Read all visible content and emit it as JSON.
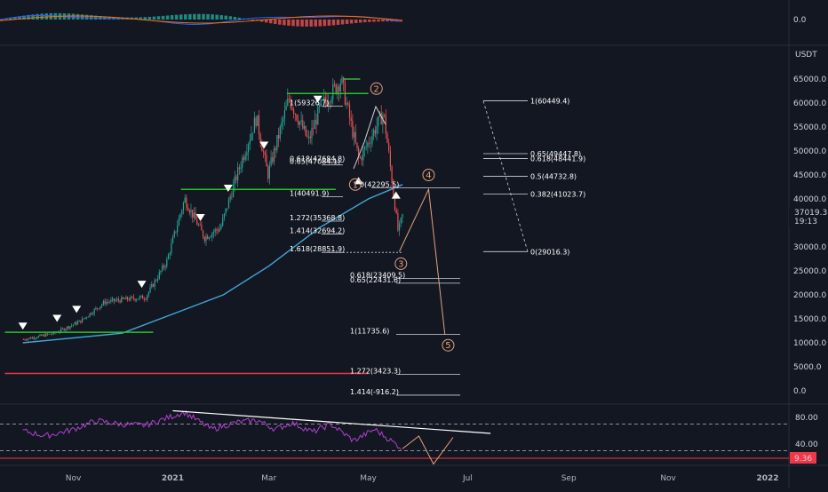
{
  "chart_data": [
    {
      "type": "line",
      "panel": "macd-histogram",
      "axis_ticks": [
        "0.0"
      ],
      "ylim": [
        -1,
        1
      ],
      "grid": false
    },
    {
      "type": "candlestick",
      "panel": "price",
      "quote_label": "USDT",
      "y_ticks": [
        65000,
        60000,
        55000,
        50000,
        45000,
        40000,
        35000,
        30000,
        25000,
        20000,
        15000,
        10000,
        5000,
        0
      ],
      "y_tick_labels": [
        "65000.0",
        "60000.0",
        "55000.0",
        "50000.0",
        "45000.0",
        "40000.0",
        "35000.0",
        "30000.0",
        "25000.0",
        "20000.0",
        "15000.0",
        "10000.0",
        "5000.0",
        "0.0"
      ],
      "ylim": [
        -3000,
        68000
      ],
      "x_labels": [
        "Nov",
        "2021",
        "Mar",
        "May",
        "Jul",
        "Sep",
        "Nov",
        "2022"
      ],
      "last_price": "37019.3",
      "countdown": "19:13",
      "price_path": [
        [
          "2020-10-01",
          10700
        ],
        [
          "2020-10-20",
          12000
        ],
        [
          "2020-11-05",
          14500
        ],
        [
          "2020-11-20",
          18500
        ],
        [
          "2020-12-01",
          19000
        ],
        [
          "2020-12-15",
          19500
        ],
        [
          "2020-12-28",
          27000
        ],
        [
          "2021-01-08",
          40000
        ],
        [
          "2021-01-20",
          32000
        ],
        [
          "2021-01-30",
          34000
        ],
        [
          "2021-02-10",
          46000
        ],
        [
          "2021-02-21",
          57000
        ],
        [
          "2021-02-28",
          45000
        ],
        [
          "2021-03-13",
          61000
        ],
        [
          "2021-03-25",
          52000
        ],
        [
          "2021-04-01",
          59000
        ],
        [
          "2021-04-14",
          64800
        ],
        [
          "2021-04-25",
          48000
        ],
        [
          "2021-05-10",
          58000
        ],
        [
          "2021-05-13",
          50000
        ],
        [
          "2021-05-19",
          33000
        ],
        [
          "2021-05-22",
          37000
        ]
      ],
      "ma_path": [
        [
          "2020-10-01",
          10000
        ],
        [
          "2020-12-01",
          12000
        ],
        [
          "2021-01-01",
          16000
        ],
        [
          "2021-02-01",
          20000
        ],
        [
          "2021-03-01",
          26000
        ],
        [
          "2021-04-01",
          34000
        ],
        [
          "2021-05-01",
          40000
        ],
        [
          "2021-05-22",
          43000
        ]
      ],
      "horizontal_levels": [
        {
          "price": 62000,
          "color": "#26c22b",
          "from": "2021-03-12",
          "to": "2021-05-01"
        },
        {
          "price": 65000,
          "color": "#26c22b",
          "from": "2021-04-16",
          "to": "2021-04-26"
        },
        {
          "price": 42000,
          "color": "#26c22b",
          "from": "2021-01-06",
          "to": "2021-04-11"
        },
        {
          "price": 12200,
          "color": "#26c22b",
          "from": "2020-09-20",
          "to": "2020-12-20"
        },
        {
          "price": 3600,
          "color": "#f23645",
          "from": "2020-09-20",
          "to": "2021-05-01"
        }
      ],
      "buy_markers": [
        "2020-10-01",
        "2020-10-22",
        "2020-11-03",
        "2020-12-13",
        "2021-01-18",
        "2021-02-04",
        "2021-02-26",
        "2021-03-31"
      ],
      "sell_markers": [
        [
          "2021-04-25",
          44000
        ],
        [
          "2021-05-18",
          41000
        ]
      ],
      "fib_left": [
        {
          "label": "1(59326.7)",
          "price": 59326.7
        },
        {
          "label": "0.618(47684.8)",
          "price": 47684.8
        },
        {
          "label": "0.65(47084.1)",
          "price": 47084.1
        },
        {
          "label": "1(40491.9)",
          "price": 40491.9
        },
        {
          "label": "1.272(35368.8)",
          "price": 35368.8
        },
        {
          "label": "1.414(32694.2)",
          "price": 32694.2
        },
        {
          "label": "1.618(28851.9)",
          "price": 28851.9
        }
      ],
      "fib_mid": [
        {
          "label": "0(42295.5)",
          "price": 42295.5
        },
        {
          "label": "0.618(23409.5)",
          "price": 23409.5
        },
        {
          "label": "0.65(22431.6)",
          "price": 22431.6
        },
        {
          "label": "1(11735.6)",
          "price": 11735.6
        },
        {
          "label": "1.272(3423.3)",
          "price": 3423.3
        },
        {
          "label": "1.414(-916.2)",
          "price": -916.2
        }
      ],
      "fib_right": [
        {
          "label": "1(60449.4)",
          "price": 60449.4
        },
        {
          "label": "0.65(49447.8)",
          "price": 49447.8
        },
        {
          "label": "0.618(48441.9)",
          "price": 48441.9
        },
        {
          "label": "0.5(44732.8)",
          "price": 44732.8
        },
        {
          "label": "0.382(41023.7)",
          "price": 41023.7
        },
        {
          "label": "0(29016.3)",
          "price": 29016.3
        }
      ],
      "waves": [
        {
          "label": "1",
          "date": "2021-04-23",
          "price": 43000
        },
        {
          "label": "2",
          "date": "2021-05-06",
          "price": 63000
        },
        {
          "label": "3",
          "date": "2021-05-21",
          "price": 26500
        },
        {
          "label": "4",
          "date": "2021-06-07",
          "price": 45000
        },
        {
          "label": "5",
          "date": "2021-06-19",
          "price": 9500
        }
      ],
      "projection": [
        [
          "2021-05-20",
          29000
        ],
        [
          "2021-06-07",
          42000
        ],
        [
          "2021-06-17",
          11700
        ]
      ],
      "resistance_level": {
        "price": 42000,
        "from": "2021-04-20",
        "to": "2021-06-20"
      }
    },
    {
      "type": "line",
      "panel": "rsi",
      "y_tick_labels": [
        "80.00",
        "40.00"
      ],
      "ylim": [
        0,
        100
      ],
      "value_label": "9.36",
      "rsi_path": [
        [
          "2020-10-01",
          60
        ],
        [
          "2020-10-15",
          52
        ],
        [
          "2020-11-01",
          62
        ],
        [
          "2020-11-15",
          75
        ],
        [
          "2020-11-30",
          70
        ],
        [
          "2020-12-15",
          68
        ],
        [
          "2021-01-01",
          82
        ],
        [
          "2021-01-08",
          88
        ],
        [
          "2021-01-25",
          62
        ],
        [
          "2021-02-08",
          72
        ],
        [
          "2021-02-22",
          76
        ],
        [
          "2021-03-05",
          62
        ],
        [
          "2021-03-15",
          72
        ],
        [
          "2021-03-28",
          58
        ],
        [
          "2021-04-08",
          70
        ],
        [
          "2021-04-22",
          45
        ],
        [
          "2021-05-05",
          62
        ],
        [
          "2021-05-22",
          33
        ]
      ],
      "rsi_projection": [
        [
          "2021-05-22",
          33
        ],
        [
          "2021-06-01",
          52
        ],
        [
          "2021-06-10",
          10
        ],
        [
          "2021-06-22",
          50
        ]
      ],
      "trendline": [
        [
          "2021-01-01",
          90
        ],
        [
          "2021-07-15",
          56
        ]
      ],
      "dashed_levels": [
        70,
        30
      ]
    }
  ]
}
